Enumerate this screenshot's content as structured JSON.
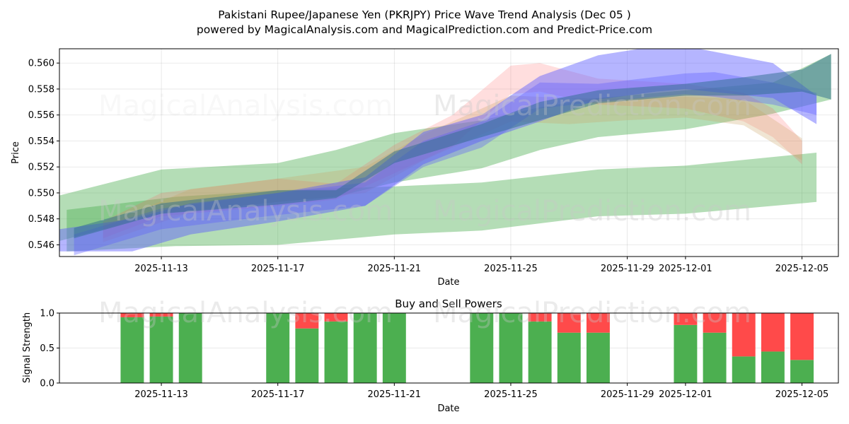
{
  "figure": {
    "title_line1": "Pakistani Rupee/Japanese Yen (PKRJPY) Price Wave Trend Analysis (Dec 05 )",
    "title_line2": "powered by MagicalAnalysis.com and MagicalPrediction.com and Predict-Price.com",
    "watermarks": [
      "MagicalAnalysis.com",
      "MagicalPrediction.com"
    ]
  },
  "chart_data": [
    {
      "type": "area",
      "title": "",
      "xlabel": "Date",
      "ylabel": "Price",
      "xlim": [
        "2025-11-09T12:00",
        "2025-12-06T06:00"
      ],
      "ylim": [
        0.5451,
        0.5611
      ],
      "x_ticks": [
        "2025-11-13",
        "2025-11-17",
        "2025-11-21",
        "2025-11-25",
        "2025-11-29",
        "2025-12-01",
        "2025-12-05"
      ],
      "y_ticks": [
        0.546,
        0.548,
        0.55,
        0.552,
        0.554,
        0.556,
        0.558,
        0.56
      ],
      "grid": true,
      "series": [
        {
          "name": "green-wide-lower",
          "color": "#4caf50",
          "opacity": 0.42,
          "x": [
            "2025-11-09T18:00",
            "2025-11-13T12:00",
            "2025-11-17",
            "2025-11-21",
            "2025-11-24",
            "2025-11-28",
            "2025-12-01",
            "2025-12-05T12:00"
          ],
          "upper": [
            0.5487,
            0.5497,
            0.5502,
            0.5505,
            0.5508,
            0.5518,
            0.5521,
            0.5531
          ],
          "lower": [
            0.5455,
            0.5459,
            0.546,
            0.5468,
            0.5471,
            0.5482,
            0.5484,
            0.5493
          ]
        },
        {
          "name": "green-wide-upper",
          "color": "#4caf50",
          "opacity": 0.42,
          "x": [
            "2025-11-09T12:00",
            "2025-11-13",
            "2025-11-17",
            "2025-11-19",
            "2025-11-21",
            "2025-11-24",
            "2025-11-26",
            "2025-11-28",
            "2025-12-01",
            "2025-12-04",
            "2025-12-06"
          ],
          "upper": [
            0.5498,
            0.5518,
            0.5523,
            0.5533,
            0.5546,
            0.5556,
            0.5566,
            0.5573,
            0.5579,
            0.5585,
            0.5607
          ],
          "lower": [
            0.5463,
            0.5484,
            0.5493,
            0.5497,
            0.5508,
            0.5519,
            0.5533,
            0.5543,
            0.5549,
            0.5561,
            0.5572
          ]
        },
        {
          "name": "red-wave",
          "color": "#ff5a5a",
          "opacity": 0.2,
          "x": [
            "2025-11-11",
            "2025-11-13",
            "2025-11-17",
            "2025-11-19",
            "2025-11-21",
            "2025-11-23",
            "2025-11-25",
            "2025-11-26",
            "2025-11-28",
            "2025-12-01",
            "2025-12-03",
            "2025-12-04",
            "2025-12-05"
          ],
          "upper": [
            0.5478,
            0.55,
            0.5511,
            0.5507,
            0.5537,
            0.556,
            0.5598,
            0.56,
            0.5588,
            0.5584,
            0.5577,
            0.5565,
            0.554
          ],
          "lower": [
            0.5465,
            0.5482,
            0.549,
            0.5495,
            0.5515,
            0.5536,
            0.5576,
            0.5578,
            0.5568,
            0.5565,
            0.5555,
            0.5543,
            0.5522
          ]
        },
        {
          "name": "orange-wave",
          "color": "#c8a060",
          "opacity": 0.28,
          "x": [
            "2025-11-11",
            "2025-11-14",
            "2025-11-17",
            "2025-11-20",
            "2025-11-22",
            "2025-11-25",
            "2025-11-27",
            "2025-11-29",
            "2025-12-01",
            "2025-12-03",
            "2025-12-05"
          ],
          "upper": [
            0.5475,
            0.5503,
            0.5511,
            0.552,
            0.5545,
            0.5575,
            0.5573,
            0.5573,
            0.5574,
            0.5572,
            0.5542
          ],
          "lower": [
            0.5462,
            0.5485,
            0.5493,
            0.55,
            0.5525,
            0.5555,
            0.5553,
            0.5556,
            0.5558,
            0.5552,
            0.5525
          ]
        },
        {
          "name": "blue-wave-upper",
          "color": "#5a5aff",
          "opacity": 0.45,
          "x": [
            "2025-11-09T12:00",
            "2025-11-12",
            "2025-11-14",
            "2025-11-17",
            "2025-11-20",
            "2025-11-22",
            "2025-11-24",
            "2025-11-26",
            "2025-11-28",
            "2025-11-30",
            "2025-12-01",
            "2025-12-04",
            "2025-12-05T12:00"
          ],
          "upper": [
            0.5472,
            0.548,
            0.5492,
            0.55,
            0.5512,
            0.5547,
            0.556,
            0.559,
            0.5606,
            0.5613,
            0.5613,
            0.56,
            0.5575
          ],
          "lower": [
            0.5455,
            0.5455,
            0.5468,
            0.5478,
            0.549,
            0.5522,
            0.554,
            0.5555,
            0.5572,
            0.5578,
            0.558,
            0.5573,
            0.5553
          ]
        },
        {
          "name": "blue-wave-core",
          "color": "#5a5aff",
          "opacity": 0.35,
          "x": [
            "2025-11-10",
            "2025-11-13",
            "2025-11-17",
            "2025-11-20",
            "2025-11-22",
            "2025-11-24",
            "2025-11-26",
            "2025-11-28",
            "2025-12-01",
            "2025-12-02",
            "2025-12-04",
            "2025-12-05T12:00"
          ],
          "upper": [
            0.5468,
            0.5488,
            0.55,
            0.5508,
            0.554,
            0.5555,
            0.5585,
            0.5584,
            0.5592,
            0.5593,
            0.5585,
            0.5577
          ],
          "lower": [
            0.5452,
            0.5472,
            0.5483,
            0.549,
            0.552,
            0.5535,
            0.5565,
            0.557,
            0.5576,
            0.5574,
            0.5568,
            0.556
          ]
        },
        {
          "name": "teal-core",
          "color": "#2e6e8e",
          "opacity": 0.5,
          "x": [
            "2025-11-10",
            "2025-11-13",
            "2025-11-17",
            "2025-11-19",
            "2025-11-21",
            "2025-11-24",
            "2025-11-26",
            "2025-11-28",
            "2025-12-01",
            "2025-12-03",
            "2025-12-05",
            "2025-12-06"
          ],
          "upper": [
            0.5473,
            0.5492,
            0.5502,
            0.5502,
            0.5532,
            0.5553,
            0.557,
            0.5579,
            0.5584,
            0.5589,
            0.5595,
            0.5607
          ],
          "lower": [
            0.5465,
            0.5484,
            0.5491,
            0.5496,
            0.5523,
            0.5543,
            0.5556,
            0.5569,
            0.5575,
            0.5575,
            0.5578,
            0.5572
          ]
        }
      ]
    },
    {
      "type": "bar",
      "title": "Buy and Sell Powers",
      "xlabel": "Date",
      "ylabel": "Signal Strength",
      "xlim": [
        "2025-11-09T12:00",
        "2025-12-06T06:00"
      ],
      "ylim": [
        0,
        1
      ],
      "x_ticks": [
        "2025-11-13",
        "2025-11-17",
        "2025-11-21",
        "2025-11-25",
        "2025-11-29",
        "2025-12-01",
        "2025-12-05"
      ],
      "y_ticks": [
        "0.0",
        "0.5",
        "1.0"
      ],
      "grid": true,
      "colors": {
        "buy": "#4caf50",
        "sell": "#ff4a4a"
      },
      "dates": [
        "2025-11-12",
        "2025-11-13",
        "2025-11-14",
        "2025-11-17",
        "2025-11-18",
        "2025-11-19",
        "2025-11-20",
        "2025-11-21",
        "2025-11-24",
        "2025-11-25",
        "2025-11-26",
        "2025-11-27",
        "2025-11-28",
        "2025-12-01",
        "2025-12-02",
        "2025-12-03",
        "2025-12-04",
        "2025-12-05"
      ],
      "buy": [
        0.94,
        0.95,
        1.0,
        1.0,
        0.78,
        0.88,
        1.0,
        1.0,
        1.0,
        1.0,
        0.88,
        0.72,
        0.72,
        0.83,
        0.72,
        0.38,
        0.45,
        0.33
      ],
      "sell": [
        0.06,
        0.05,
        0.0,
        0.0,
        0.22,
        0.12,
        0.0,
        0.0,
        0.0,
        0.0,
        0.12,
        0.28,
        0.28,
        0.17,
        0.28,
        0.62,
        0.55,
        0.67
      ]
    }
  ]
}
